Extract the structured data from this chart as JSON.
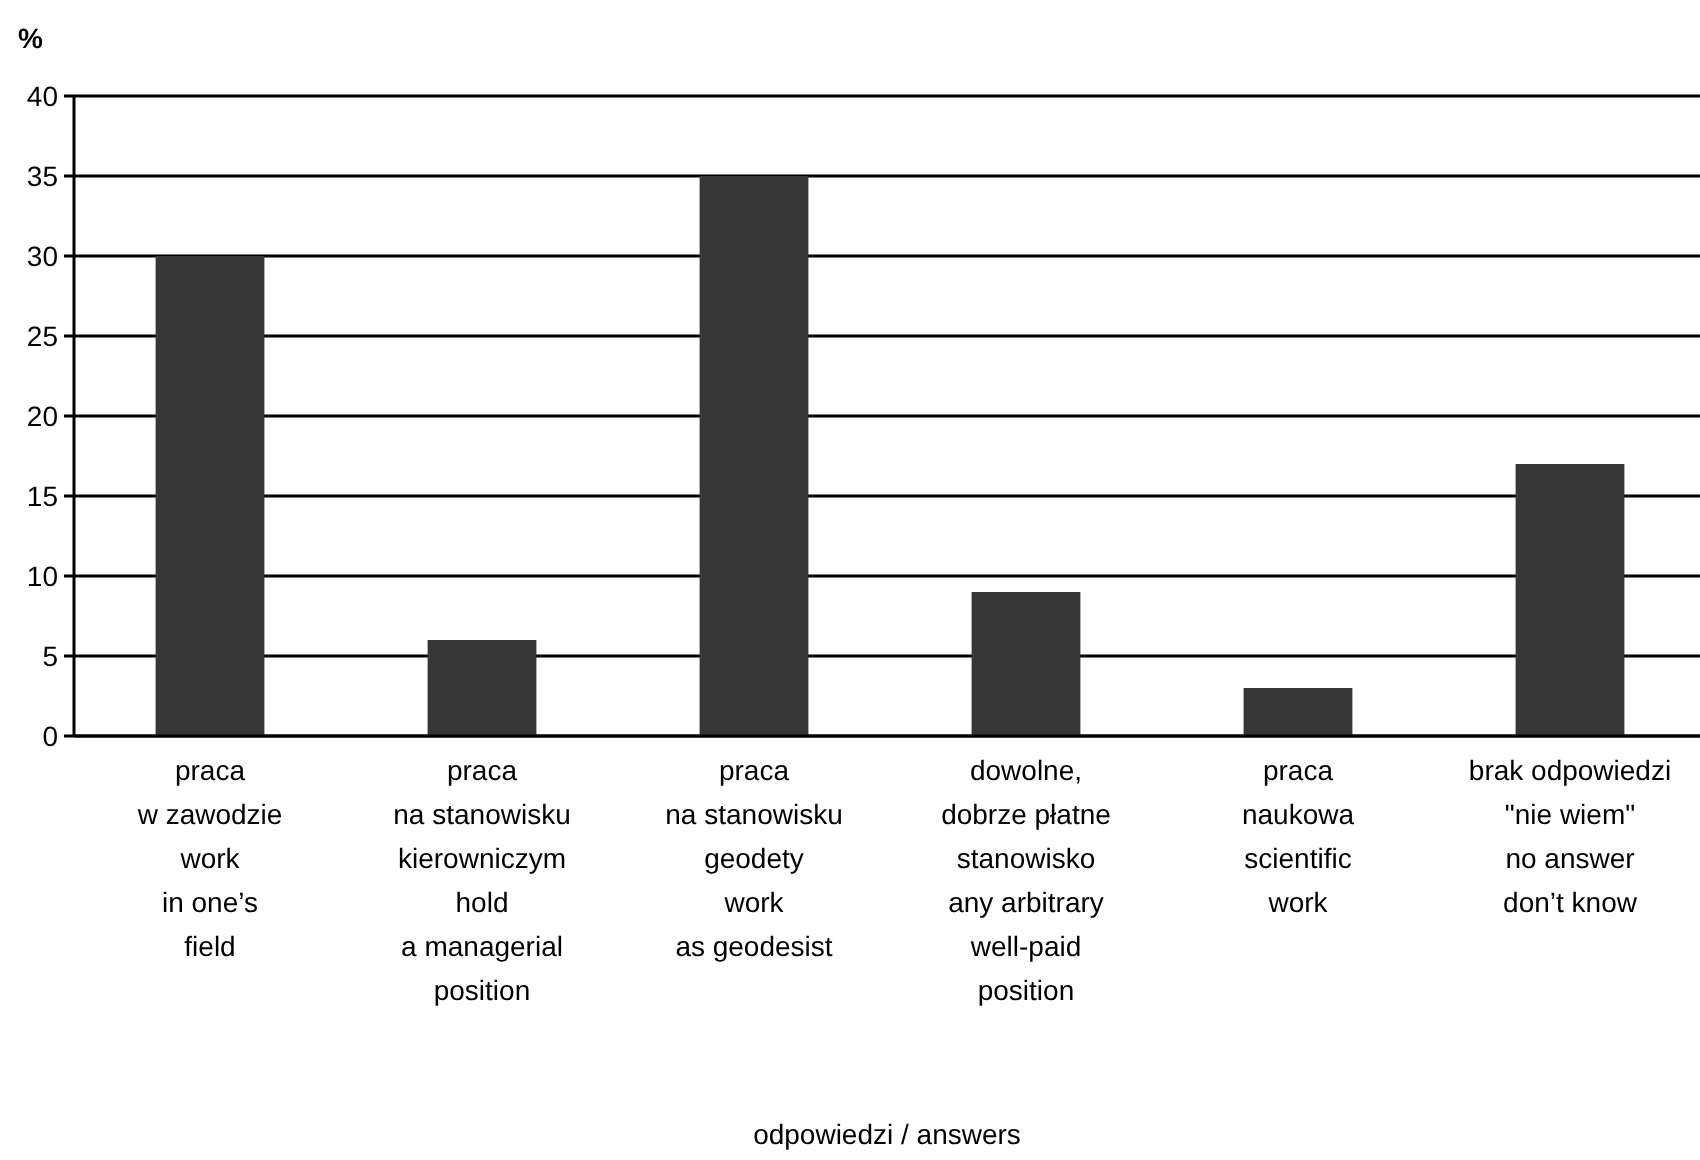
{
  "chart_data": {
    "type": "bar",
    "ylabel": "%",
    "xlabel": "odpowiedzi / answers",
    "categories": [
      "praca\nw zawodzie\nwork\nin one’s\nfield",
      "praca\nna stanowisku\nkierowniczym\nhold\na managerial\nposition",
      "praca\nna stanowisku\ngeodety\nwork\nas geodesist",
      "dowolne,\ndobrze płatne\nstanowisko\nany arbitrary\nwell-paid\nposition",
      "praca\nnaukowa\nscientific\nwork",
      "brak odpowiedzi\n\"nie wiem\"\nno answer\ndon’t know"
    ],
    "values": [
      30,
      6,
      35,
      9,
      3,
      17
    ],
    "color": "#363636",
    "ylim": [
      0,
      40
    ],
    "yticks": [
      0,
      5,
      10,
      15,
      20,
      25,
      30,
      35,
      40
    ],
    "grid": "y"
  }
}
